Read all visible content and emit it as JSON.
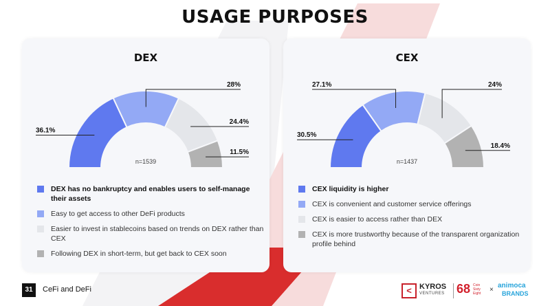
{
  "title": "USAGE PURPOSES",
  "footer": {
    "page_number": "31",
    "section": "CeFi and DeFi"
  },
  "brands": {
    "kyros_name": "KYROS",
    "kyros_sub": "VENTURES",
    "coin68": "68",
    "coin68_sub": "Coin Sixty Eight",
    "times": "×",
    "animoca": "animoca",
    "animoca_sub": "BRANDS"
  },
  "colors": {
    "segment1": "#5f79ef",
    "segment2": "#93a9f5",
    "segment3": "#e4e6ea",
    "segment4": "#b2b2b2",
    "accent_red": "#d92d2d"
  },
  "chart_data": [
    {
      "type": "pie",
      "title": "DEX",
      "note": "n=1539",
      "values": [
        36.1,
        28,
        24.4,
        11.5
      ],
      "data_labels": [
        "36.1%",
        "28%",
        "24.4%",
        "11.5%"
      ],
      "categories": [
        "DEX has no bankruptcy and enables users to self-manage their assets",
        "Easy to get access to other DeFi products",
        "Easier to invest in stablecoins based on trends on DEX rather than CEX",
        "Following DEX in short-term, but get back to CEX soon"
      ]
    },
    {
      "type": "pie",
      "title": "CEX",
      "note": "n=1437",
      "values": [
        30.5,
        27.1,
        24,
        18.4
      ],
      "data_labels": [
        "30.5%",
        "27.1%",
        "24%",
        "18.4%"
      ],
      "categories": [
        "CEX liquidity is higher",
        "CEX is convenient and customer service offerings",
        "CEX is easier to access rather than DEX",
        "CEX is more trustworthy because of the transparent organization profile behind"
      ]
    }
  ]
}
